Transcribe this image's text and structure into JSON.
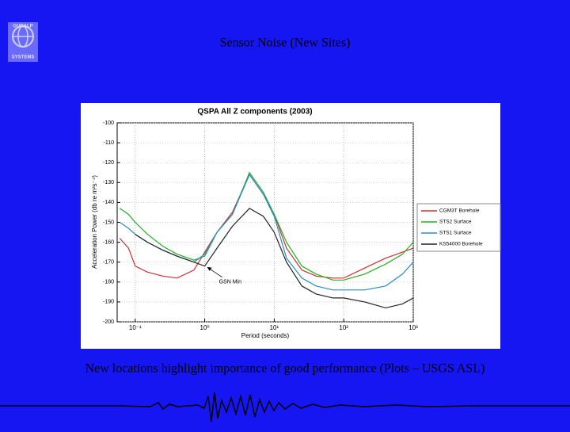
{
  "slide": {
    "title": "Sensor Noise (New Sites)",
    "caption": "New locations highlight  importance of good performance (Plots – USGS ASL)",
    "logo": [
      "GURALP",
      "SYSTEMS"
    ]
  },
  "chart_data": {
    "type": "line",
    "title": "QSPA All Z components (2003)",
    "x_label": "Period (seconds)",
    "y_label": "Acceleration Power (db re m²s⁻⁴)",
    "xscale": "log",
    "grid": true,
    "legend": "right",
    "xlim": [
      0.055,
      1000
    ],
    "ylim": [
      -200,
      -100
    ],
    "xticks": [
      {
        "value": 0.1,
        "label": "10⁻¹"
      },
      {
        "value": 1,
        "label": "10⁰"
      },
      {
        "value": 10,
        "label": "10¹"
      },
      {
        "value": 100,
        "label": "10²"
      },
      {
        "value": 1000,
        "label": "10³"
      }
    ],
    "yticks": [
      -200,
      -190,
      -180,
      -170,
      -160,
      -150,
      -140,
      -130,
      -120,
      -110,
      -100
    ],
    "x": [
      0.06,
      0.08,
      0.1,
      0.15,
      0.25,
      0.4,
      0.7,
      1,
      1.5,
      2.5,
      4.4,
      7,
      10,
      15,
      25,
      40,
      70,
      100,
      200,
      400,
      700,
      1000
    ],
    "series": [
      {
        "name": "CGM3T Borehole",
        "color": "#d03030",
        "values": [
          -158,
          -163,
          -172,
          -175,
          -177,
          -178,
          -174,
          -165,
          -155,
          -145,
          -126,
          -136,
          -146,
          -163,
          -174,
          -177,
          -178,
          -178,
          -173,
          -168,
          -165,
          -163
        ]
      },
      {
        "name": "STS2 Surface",
        "color": "#20b020",
        "values": [
          -143,
          -146,
          -150,
          -156,
          -162,
          -166,
          -169,
          -167,
          -155,
          -146,
          -125,
          -135,
          -146,
          -160,
          -172,
          -176,
          -179,
          -179,
          -176,
          -171,
          -166,
          -160
        ]
      },
      {
        "name": "STS1 Surface",
        "color": "#2a8ad0",
        "values": [
          -150,
          -153,
          -156,
          -160,
          -164,
          -167,
          -170,
          -166,
          -155,
          -146,
          -126,
          -136,
          -147,
          -168,
          -178,
          -182,
          -184,
          -184,
          -184,
          -182,
          -176,
          -170
        ]
      },
      {
        "name": "KS54000 Borehole",
        "color": "#222222",
        "values": [
          null,
          null,
          -156,
          -160,
          -164,
          -167,
          -170,
          -172,
          -163,
          -152,
          -143,
          -147,
          -155,
          -170,
          -182,
          -186,
          -188,
          -188,
          -190,
          -193,
          -191,
          -188
        ]
      }
    ],
    "annotation": {
      "text": "GSN Min",
      "x": 1,
      "y": -172
    }
  }
}
